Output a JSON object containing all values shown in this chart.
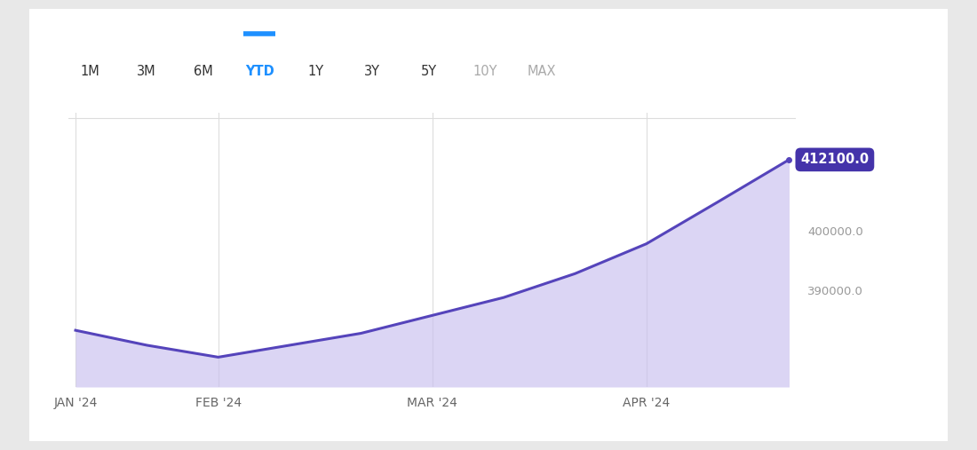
{
  "x_values": [
    0,
    0.5,
    1,
    1.5,
    2,
    2.5,
    3,
    3.5,
    4,
    4.5,
    5
  ],
  "y_values": [
    383500,
    381000,
    379000,
    381000,
    383000,
    386000,
    389000,
    393000,
    398000,
    405000,
    412100
  ],
  "line_color": "#5544BB",
  "fill_color": "#C8BFEF",
  "label_value": "412100.0",
  "label_bg": "#4433AA",
  "label_text_color": "#FFFFFF",
  "yticks": [
    390000,
    400000
  ],
  "ytick_labels": [
    "390000.0",
    "400000.0"
  ],
  "ylim_bottom": 374000,
  "ylim_top": 420000,
  "xlim_left": -0.05,
  "xlim_right": 5.05,
  "xtick_positions": [
    0,
    1,
    2.5,
    4
  ],
  "xtick_labels": [
    "JAN '24",
    "FEB '24",
    "MAR '24",
    "APR '24"
  ],
  "grid_color": "#DDDDDD",
  "bg_color": "#FFFFFF",
  "outer_bg": "#E8E8E8",
  "card_bg": "#FFFFFF",
  "tab_labels": [
    "1M",
    "3M",
    "6M",
    "YTD",
    "1Y",
    "3Y",
    "5Y",
    "10Y",
    "MAX"
  ],
  "tab_active": "YTD",
  "tab_active_color": "#1E90FF",
  "tab_inactive_color": "#333333",
  "tab_disabled_color": "#AAAAAA",
  "tab_disabled": [
    "10Y",
    "MAX"
  ],
  "tab_underline_color": "#1E90FF",
  "line_width": 2.2,
  "ytick_color": "#999999",
  "xtick_color": "#666666"
}
